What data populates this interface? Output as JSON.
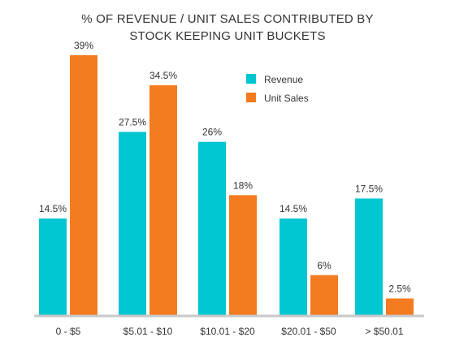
{
  "chart_data": {
    "type": "bar",
    "title": [
      "% OF REVENUE / UNIT SALES CONTRIBUTED BY",
      "STOCK KEEPING UNIT BUCKETS"
    ],
    "categories": [
      "0 - $5",
      "$5.01 - $10",
      "$10.01 - $20",
      "$20.01 - $50",
      "> $50.01"
    ],
    "series": [
      {
        "name": "Revenue",
        "color": "#00C6D2",
        "values": [
          14.5,
          27.5,
          26,
          14.5,
          17.5
        ],
        "labels": [
          "14.5%",
          "27.5%",
          "26%",
          "14.5%",
          "17.5%"
        ]
      },
      {
        "name": "Unit Sales",
        "color": "#F47B20",
        "values": [
          39,
          34.5,
          18,
          6,
          2.5
        ],
        "labels": [
          "39%",
          "34.5%",
          "18%",
          "6%",
          "2.5%"
        ]
      }
    ],
    "ylim": [
      0,
      39
    ],
    "legend_position": "top-right",
    "grid": false,
    "xlabel": "",
    "ylabel": "",
    "baseline_color": "#C8C8C8"
  }
}
